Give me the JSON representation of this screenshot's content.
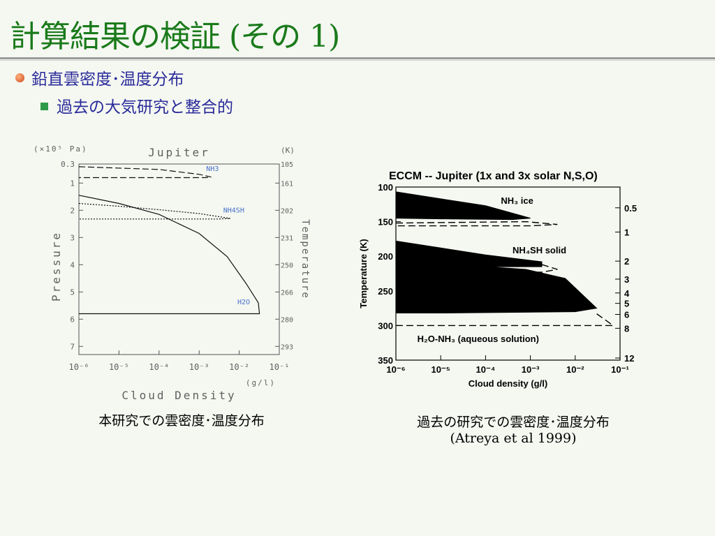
{
  "slide": {
    "title": "計算結果の検証 (その 1)",
    "bullet_level1": "鉛直雲密度･温度分布",
    "bullet_level2": "過去の大気研究と整合的"
  },
  "captions": {
    "left": "本研究での雲密度･温度分布",
    "right_line1": "過去の研究での雲密度･温度分布",
    "right_line2": "(Atreya et al 1999)"
  },
  "chart_data": [
    {
      "type": "line",
      "title": "Jupiter",
      "xlabel": "Cloud Density",
      "x_unit_label": "(g/l)",
      "ylabel": "Pressure",
      "y_unit_label": "(×10⁵ Pa)",
      "y2label": "Temperature",
      "y2_unit_label": "(K)",
      "xscale": "log",
      "xlim": [
        1e-06,
        0.1
      ],
      "x_ticks": [
        "10⁻⁶",
        "10⁻⁵",
        "10⁻⁴",
        "10⁻³",
        "10⁻²",
        "10⁻¹"
      ],
      "ylim": [
        0.3,
        7.3
      ],
      "y_ticks": [
        "0.3",
        "1",
        "2",
        "3",
        "4",
        "5",
        "6",
        "7"
      ],
      "y_tick_values": [
        0.3,
        1,
        2,
        3,
        4,
        5,
        6,
        7
      ],
      "y2_ticks": [
        "105",
        "161",
        "202",
        "231",
        "250",
        "266",
        "280",
        "293"
      ],
      "series": [
        {
          "name": "NH3",
          "style": "dashed-long",
          "points": [
            [
              1e-06,
              0.4
            ],
            [
              0.0001,
              0.5
            ],
            [
              0.001,
              0.68
            ],
            [
              0.002,
              0.78
            ],
            [
              0.0015,
              0.8
            ],
            [
              0.0001,
              0.8
            ],
            [
              1e-06,
              0.8
            ]
          ]
        },
        {
          "name": "NH4SH",
          "style": "dotted",
          "points": [
            [
              1e-06,
              1.75
            ],
            [
              1e-05,
              1.85
            ],
            [
              0.0001,
              1.98
            ],
            [
              0.001,
              2.12
            ],
            [
              0.006,
              2.3
            ],
            [
              0.003,
              2.32
            ],
            [
              0.0001,
              2.32
            ],
            [
              1e-06,
              2.32
            ]
          ]
        },
        {
          "name": "H2O",
          "style": "solid",
          "points": [
            [
              1e-06,
              1.45
            ],
            [
              1e-05,
              1.75
            ],
            [
              0.0001,
              2.15
            ],
            [
              0.001,
              2.85
            ],
            [
              0.005,
              3.7
            ],
            [
              0.015,
              4.7
            ],
            [
              0.03,
              5.4
            ],
            [
              0.032,
              5.8
            ],
            [
              1e-06,
              5.8
            ]
          ]
        }
      ],
      "annotations": [
        "NH3",
        "NH4SH",
        "H2O"
      ],
      "colors": {
        "annotation": "#4a70c8",
        "axes": "#555555",
        "text": "#606060"
      }
    },
    {
      "type": "area",
      "title": "ECCM -- Jupiter (1x and 3x solar N,S,O)",
      "xlabel": "Cloud density (g/l)",
      "ylabel": "Temperature (K)",
      "xscale": "log",
      "xlim": [
        1e-06,
        0.1
      ],
      "x_ticks": [
        "10⁻⁶",
        "10⁻⁵",
        "10⁻⁴",
        "10⁻³",
        "10⁻²",
        "10⁻¹"
      ],
      "ylim": [
        100,
        350
      ],
      "y_ticks": [
        "100",
        "150",
        "200",
        "250",
        "300",
        "350"
      ],
      "y_tick_values": [
        100,
        150,
        200,
        250,
        300,
        350
      ],
      "y2_ticks": [
        "0.5",
        "1",
        "2",
        "3",
        "4",
        "5",
        "6",
        "8",
        "12"
      ],
      "y2_tick_temps": [
        130,
        165,
        207,
        233,
        253,
        268,
        284,
        304,
        347
      ],
      "series": [
        {
          "name": "NH3 ice",
          "points": [
            [
              1e-06,
              107
            ],
            [
              1e-05,
              117
            ],
            [
              0.0001,
              127
            ],
            [
              0.001,
              145
            ],
            [
              0.0004,
              147
            ],
            [
              1e-05,
              146
            ],
            [
              1e-06,
              145
            ]
          ],
          "dashed_extension": [
            [
              1e-06,
              152
            ],
            [
              0.0008,
              150
            ],
            [
              0.004,
              154
            ],
            [
              0.001,
              156
            ],
            [
              1e-06,
              156
            ]
          ]
        },
        {
          "name": "NH4SH solid",
          "points": [
            [
              1e-06,
              178
            ],
            [
              1e-05,
              188
            ],
            [
              0.0001,
              198
            ],
            [
              0.0018,
              208
            ],
            [
              0.0018,
              215
            ],
            [
              0.0001,
              215
            ],
            [
              0.0008,
              219
            ],
            [
              0.006,
              232
            ],
            [
              0.03,
              275
            ],
            [
              0.01,
              280
            ],
            [
              1e-05,
              282
            ],
            [
              1e-06,
              282
            ]
          ],
          "dashed_extension": [
            [
              0.0018,
              212
            ],
            [
              0.004,
              219
            ],
            [
              0.0018,
              223
            ],
            [
              0.0002,
              223
            ]
          ]
        },
        {
          "name": "H2O-NH3 (aqueous solution)",
          "dashed_extension": [
            [
              1e-06,
              300
            ],
            [
              0.07,
              300
            ],
            [
              0.03,
              283
            ]
          ]
        }
      ],
      "annotations": [
        "NH₃ ice",
        "NH₄SH solid",
        "H₂O-NH₃ (aqueous solution)"
      ],
      "colors": {
        "fill": "#000000",
        "axes": "#000000"
      }
    }
  ]
}
